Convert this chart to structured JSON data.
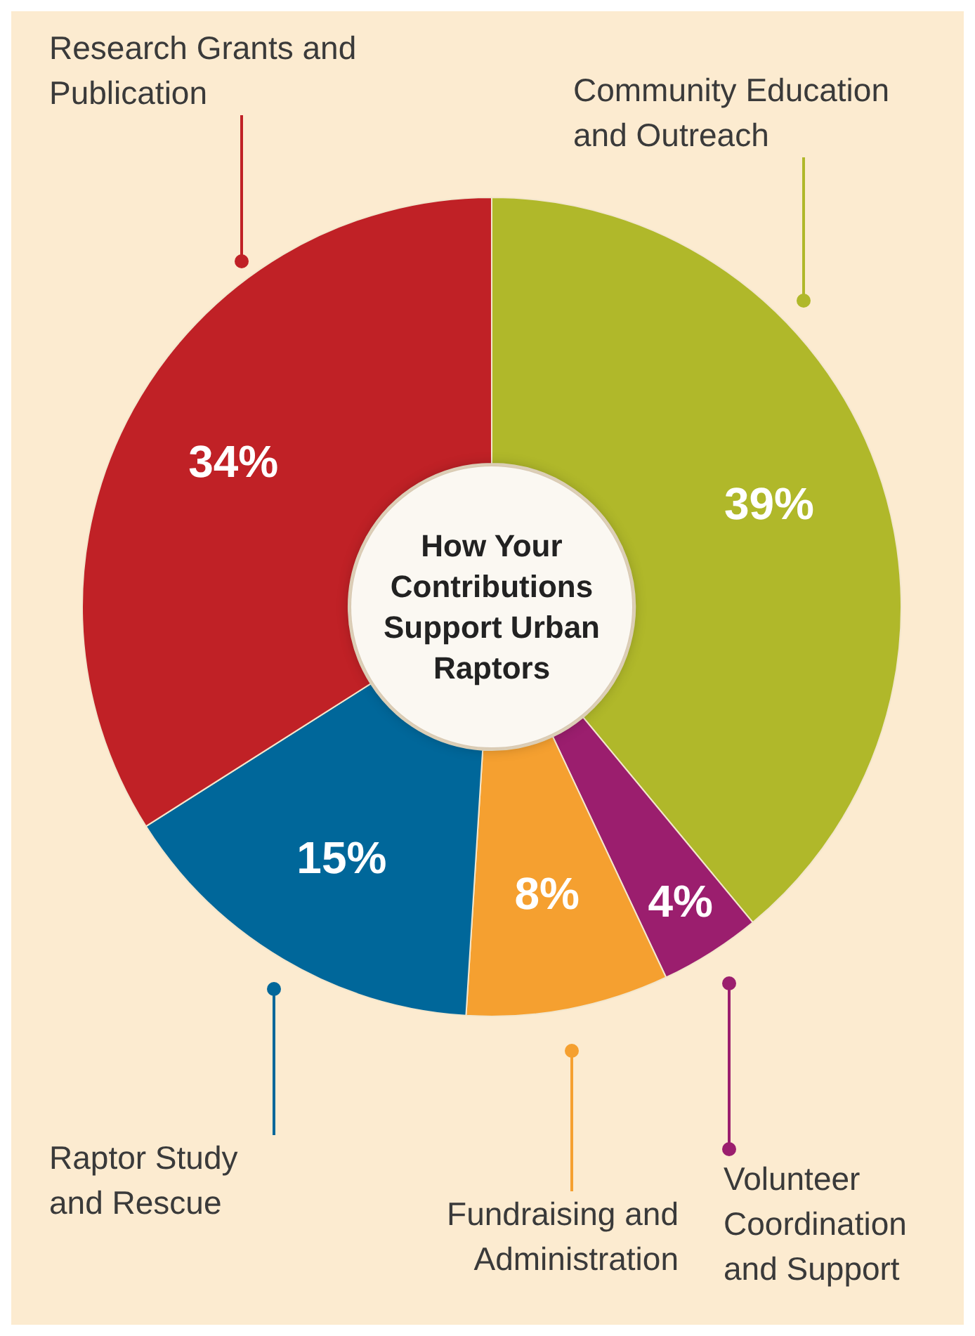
{
  "chart_data": {
    "type": "donut",
    "title": "How Your Contributions Support Urban Raptors",
    "categories": [
      "Community Education and Outreach",
      "Volunteer Coordination and Support",
      "Fundraising and Administration",
      "Raptor Study and Rescue",
      "Research Grants and Publication"
    ],
    "values": [
      39,
      4,
      8,
      15,
      34
    ],
    "colors": [
      "#b0b82a",
      "#9b1e6e",
      "#f5a030",
      "#00679a",
      "#c02126"
    ],
    "value_labels": [
      "39%",
      "4%",
      "8%",
      "15%",
      "34%"
    ]
  }
}
